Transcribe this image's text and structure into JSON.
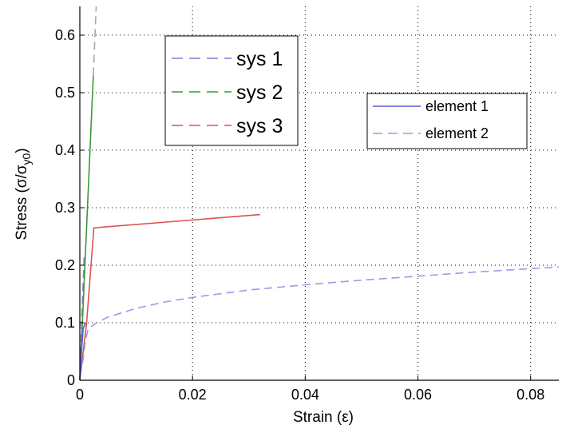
{
  "chart_data": {
    "type": "line",
    "xlabel": "Strain (ε)",
    "ylabel_main": "Stress (σ/σ",
    "ylabel_sub": "y0",
    "ylabel_close": ")",
    "xlim": [
      0,
      0.085
    ],
    "ylim": [
      0,
      0.65
    ],
    "grid": true,
    "xticks": [
      "0",
      "0.02",
      "0.04",
      "0.06",
      "0.08"
    ],
    "xtick_values": [
      0,
      0.02,
      0.04,
      0.06,
      0.08
    ],
    "yticks": [
      "0",
      "0.1",
      "0.2",
      "0.3",
      "0.4",
      "0.5",
      "0.6"
    ],
    "ytick_values": [
      0,
      0.1,
      0.2,
      0.3,
      0.4,
      0.5,
      0.6
    ],
    "series": [
      {
        "name": "sys 1",
        "legend": 1,
        "color": "#7f7fd5",
        "style": "dashed",
        "x": [
          0,
          0.0004,
          0.0008
        ],
        "y": [
          0,
          0.12,
          0.22
        ]
      },
      {
        "name": "sys 2",
        "legend": 1,
        "color": "#3a9a3a",
        "style": "solid",
        "x": [
          0,
          0.0024
        ],
        "y": [
          0,
          0.53
        ]
      },
      {
        "name": "sys 2 (dashed ext.)",
        "legend": 0,
        "color": "#a8a8a8",
        "style": "dashed",
        "x": [
          0.0024,
          0.0029
        ],
        "y": [
          0.53,
          0.65
        ]
      },
      {
        "name": "sys 3",
        "legend": 1,
        "color": "#e05050",
        "style": "solid",
        "x": [
          0,
          0.0012,
          0.0025,
          0.032
        ],
        "y": [
          0,
          0.1,
          0.265,
          0.288
        ]
      },
      {
        "name": "element 1",
        "legend": 2,
        "color": "#5a5ae0",
        "style": "solid",
        "x": [
          0,
          0.0003,
          0.0006,
          0.001
        ],
        "y": [
          0,
          0.05,
          0.09,
          0.1
        ]
      },
      {
        "name": "element 2",
        "legend": 2,
        "color": "#9a9aec",
        "style": "dashed",
        "x": [
          0.0005,
          0.001,
          0.0015,
          0.003,
          0.005,
          0.01,
          0.015,
          0.02,
          0.03,
          0.04,
          0.05,
          0.06,
          0.07,
          0.08,
          0.085
        ],
        "y": [
          0.03,
          0.07,
          0.09,
          0.1,
          0.11,
          0.125,
          0.136,
          0.144,
          0.157,
          0.166,
          0.174,
          0.181,
          0.188,
          0.194,
          0.197
        ]
      }
    ],
    "legend1": {
      "placement": "top-center",
      "entries": [
        {
          "label": "sys 1",
          "color": "#7f7fd5"
        },
        {
          "label": "sys 2",
          "color": "#3a9a3a"
        },
        {
          "label": "sys 3",
          "color": "#e05050"
        }
      ]
    },
    "legend2": {
      "placement": "right",
      "entries": [
        {
          "label": "element 1",
          "color": "#5a5ae0",
          "style": "solid"
        },
        {
          "label": "element 2",
          "color": "#9a9aec",
          "style": "dashed"
        }
      ]
    }
  }
}
